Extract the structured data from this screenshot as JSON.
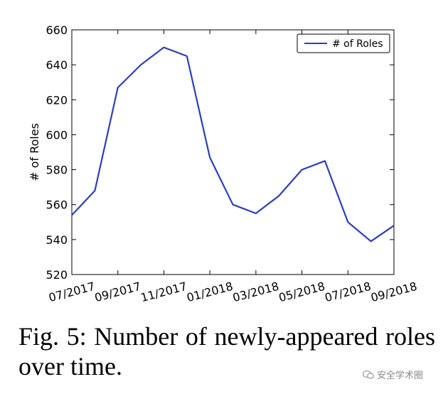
{
  "chart_data": {
    "type": "line",
    "x_tick_labels": [
      "07/2017",
      "09/2017",
      "11/2017",
      "01/2018",
      "03/2018",
      "05/2018",
      "07/2018",
      "09/2018"
    ],
    "x": [
      "07/2017",
      "08/2017",
      "09/2017",
      "10/2017",
      "11/2017",
      "12/2017",
      "01/2018",
      "02/2018",
      "03/2018",
      "04/2018",
      "05/2018",
      "06/2018",
      "07/2018",
      "08/2018",
      "09/2018"
    ],
    "series": [
      {
        "name": "# of Roles",
        "color": "#2b3fbf",
        "values": [
          554,
          568,
          627,
          640,
          650,
          645,
          587,
          560,
          555,
          565,
          580,
          585,
          550,
          539,
          548
        ]
      }
    ],
    "ylabel": "# of Roles",
    "xlabel": "",
    "ylim": [
      520,
      660
    ],
    "y_ticks": [
      520,
      540,
      560,
      580,
      600,
      620,
      640,
      660
    ],
    "legend_position": "top-right",
    "grid": false
  },
  "caption": "Fig. 5: Number of newly-appeared roles over time.",
  "watermark": {
    "text": "安全学术圈",
    "icon": "wechat-icon"
  }
}
